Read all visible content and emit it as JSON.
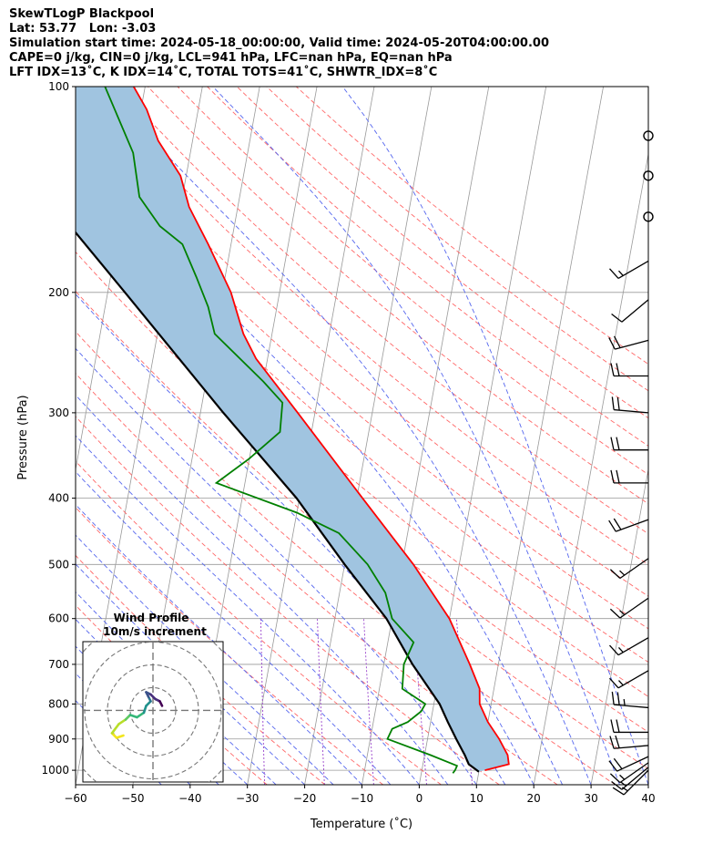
{
  "header": {
    "title": "SkewTLogP Blackpool",
    "location": "Lat: 53.77   Lon: -3.03",
    "times": "Simulation start time: 2024-05-18_00:00:00, Valid time: 2024-05-20T04:00:00.00",
    "params": "CAPE=0 j/kg, CIN=0 j/kg, LCL=941 hPa, LFC=nan hPa, EQ=nan hPa",
    "indices": "LFT IDX=13˚C, K IDX=14˚C, TOTAL TOTS=41˚C, SHWTR_IDX=8˚C"
  },
  "chart_data": {
    "type": "line",
    "subtype": "skew-t log-p diagram",
    "xlabel": "Temperature (˚C)",
    "ylabel": "Pressure (hPa)",
    "xlim": [
      -60,
      40
    ],
    "ylim": [
      1050,
      100
    ],
    "y_scale": "log",
    "x_ticks": [
      -60,
      -50,
      -40,
      -30,
      -20,
      -10,
      0,
      10,
      20,
      30,
      40
    ],
    "y_ticks": [
      100,
      200,
      300,
      400,
      500,
      600,
      700,
      800,
      900,
      1000
    ],
    "grid": true,
    "colors": {
      "temperature": "#ff0000",
      "dewpoint": "#008000",
      "parcel": "#000000",
      "shading": "#a0c4e0",
      "dry_adiabats": "#ff6666",
      "moist_adiabats": "#5566ee",
      "mixing_ratio": "#9944cc",
      "isotherms": "#999999"
    },
    "series": [
      {
        "role": "temperature",
        "points": [
          [
            1000,
            11
          ],
          [
            980,
            15
          ],
          [
            950,
            14.5
          ],
          [
            900,
            12.5
          ],
          [
            850,
            10
          ],
          [
            800,
            8
          ],
          [
            760,
            7.5
          ],
          [
            700,
            5
          ],
          [
            600,
            0
          ],
          [
            500,
            -8
          ],
          [
            400,
            -19
          ],
          [
            300,
            -33
          ],
          [
            250,
            -42
          ],
          [
            230,
            -45
          ],
          [
            200,
            -48.5
          ],
          [
            170,
            -54
          ],
          [
            150,
            -58.5
          ],
          [
            135,
            -61
          ],
          [
            120,
            -66
          ],
          [
            108,
            -69
          ],
          [
            100,
            -72
          ]
        ]
      },
      {
        "role": "dewpoint",
        "points": [
          [
            1010,
            5.5
          ],
          [
            1000,
            5.8
          ],
          [
            985,
            6
          ],
          [
            950,
            1
          ],
          [
            900,
            -7
          ],
          [
            870,
            -6.5
          ],
          [
            850,
            -4
          ],
          [
            820,
            -2
          ],
          [
            800,
            -1.5
          ],
          [
            760,
            -6
          ],
          [
            700,
            -6.5
          ],
          [
            650,
            -5.5
          ],
          [
            600,
            -10
          ],
          [
            550,
            -12
          ],
          [
            500,
            -16
          ],
          [
            450,
            -22
          ],
          [
            420,
            -30
          ],
          [
            380,
            -45
          ],
          [
            350,
            -40
          ],
          [
            320,
            -35.5
          ],
          [
            290,
            -36
          ],
          [
            270,
            -40
          ],
          [
            230,
            -50
          ],
          [
            210,
            -52
          ],
          [
            190,
            -55
          ],
          [
            170,
            -58.5
          ],
          [
            160,
            -63
          ],
          [
            145,
            -67.5
          ],
          [
            125,
            -70
          ],
          [
            100,
            -77
          ]
        ]
      },
      {
        "role": "parcel",
        "points": [
          [
            1005,
            10
          ],
          [
            980,
            8
          ],
          [
            950,
            7
          ],
          [
            900,
            5
          ],
          [
            850,
            3
          ],
          [
            800,
            1
          ],
          [
            700,
            -5
          ],
          [
            600,
            -11
          ],
          [
            500,
            -20
          ],
          [
            400,
            -30.5
          ],
          [
            300,
            -46
          ],
          [
            200,
            -67
          ],
          [
            150,
            -82
          ],
          [
            100,
            -103
          ]
        ]
      }
    ],
    "wind_barbs": [
      {
        "pressure": 1000,
        "speed": 15,
        "direction": 225
      },
      {
        "pressure": 990,
        "speed": 15,
        "direction": 230
      },
      {
        "pressure": 975,
        "speed": 15,
        "direction": 235
      },
      {
        "pressure": 955,
        "speed": 20,
        "direction": 245
      },
      {
        "pressure": 920,
        "speed": 20,
        "direction": 265
      },
      {
        "pressure": 880,
        "speed": 20,
        "direction": 270
      },
      {
        "pressure": 810,
        "speed": 25,
        "direction": 275
      },
      {
        "pressure": 715,
        "speed": 15,
        "direction": 240
      },
      {
        "pressure": 640,
        "speed": 15,
        "direction": 240
      },
      {
        "pressure": 560,
        "speed": 15,
        "direction": 235
      },
      {
        "pressure": 490,
        "speed": 15,
        "direction": 235
      },
      {
        "pressure": 430,
        "speed": 20,
        "direction": 250
      },
      {
        "pressure": 380,
        "speed": 20,
        "direction": 270
      },
      {
        "pressure": 340,
        "speed": 20,
        "direction": 270
      },
      {
        "pressure": 300,
        "speed": 20,
        "direction": 275
      },
      {
        "pressure": 265,
        "speed": 20,
        "direction": 270
      },
      {
        "pressure": 235,
        "speed": 20,
        "direction": 255
      },
      {
        "pressure": 205,
        "speed": 10,
        "direction": 230
      },
      {
        "pressure": 180,
        "speed": 15,
        "direction": 240
      },
      {
        "pressure": 155,
        "speed": 0,
        "direction": 0
      },
      {
        "pressure": 135,
        "speed": 0,
        "direction": 0
      },
      {
        "pressure": 118,
        "speed": 0,
        "direction": 0
      }
    ],
    "hodograph": {
      "title": "Wind Profile",
      "subtitle": "10m/s increment",
      "ring_increment_ms": 10,
      "points": [
        [
          -13,
          -11
        ],
        [
          -16,
          -12
        ],
        [
          -18,
          -10
        ],
        [
          -15,
          -6
        ],
        [
          -12,
          -4
        ],
        [
          -10,
          -2
        ],
        [
          -7,
          -3
        ],
        [
          -4,
          -1
        ],
        [
          -3,
          2
        ],
        [
          -1,
          4
        ],
        [
          -2,
          6
        ],
        [
          -3,
          8
        ],
        [
          -1,
          7
        ],
        [
          1,
          5
        ],
        [
          3,
          4
        ],
        [
          4,
          2
        ]
      ]
    }
  }
}
